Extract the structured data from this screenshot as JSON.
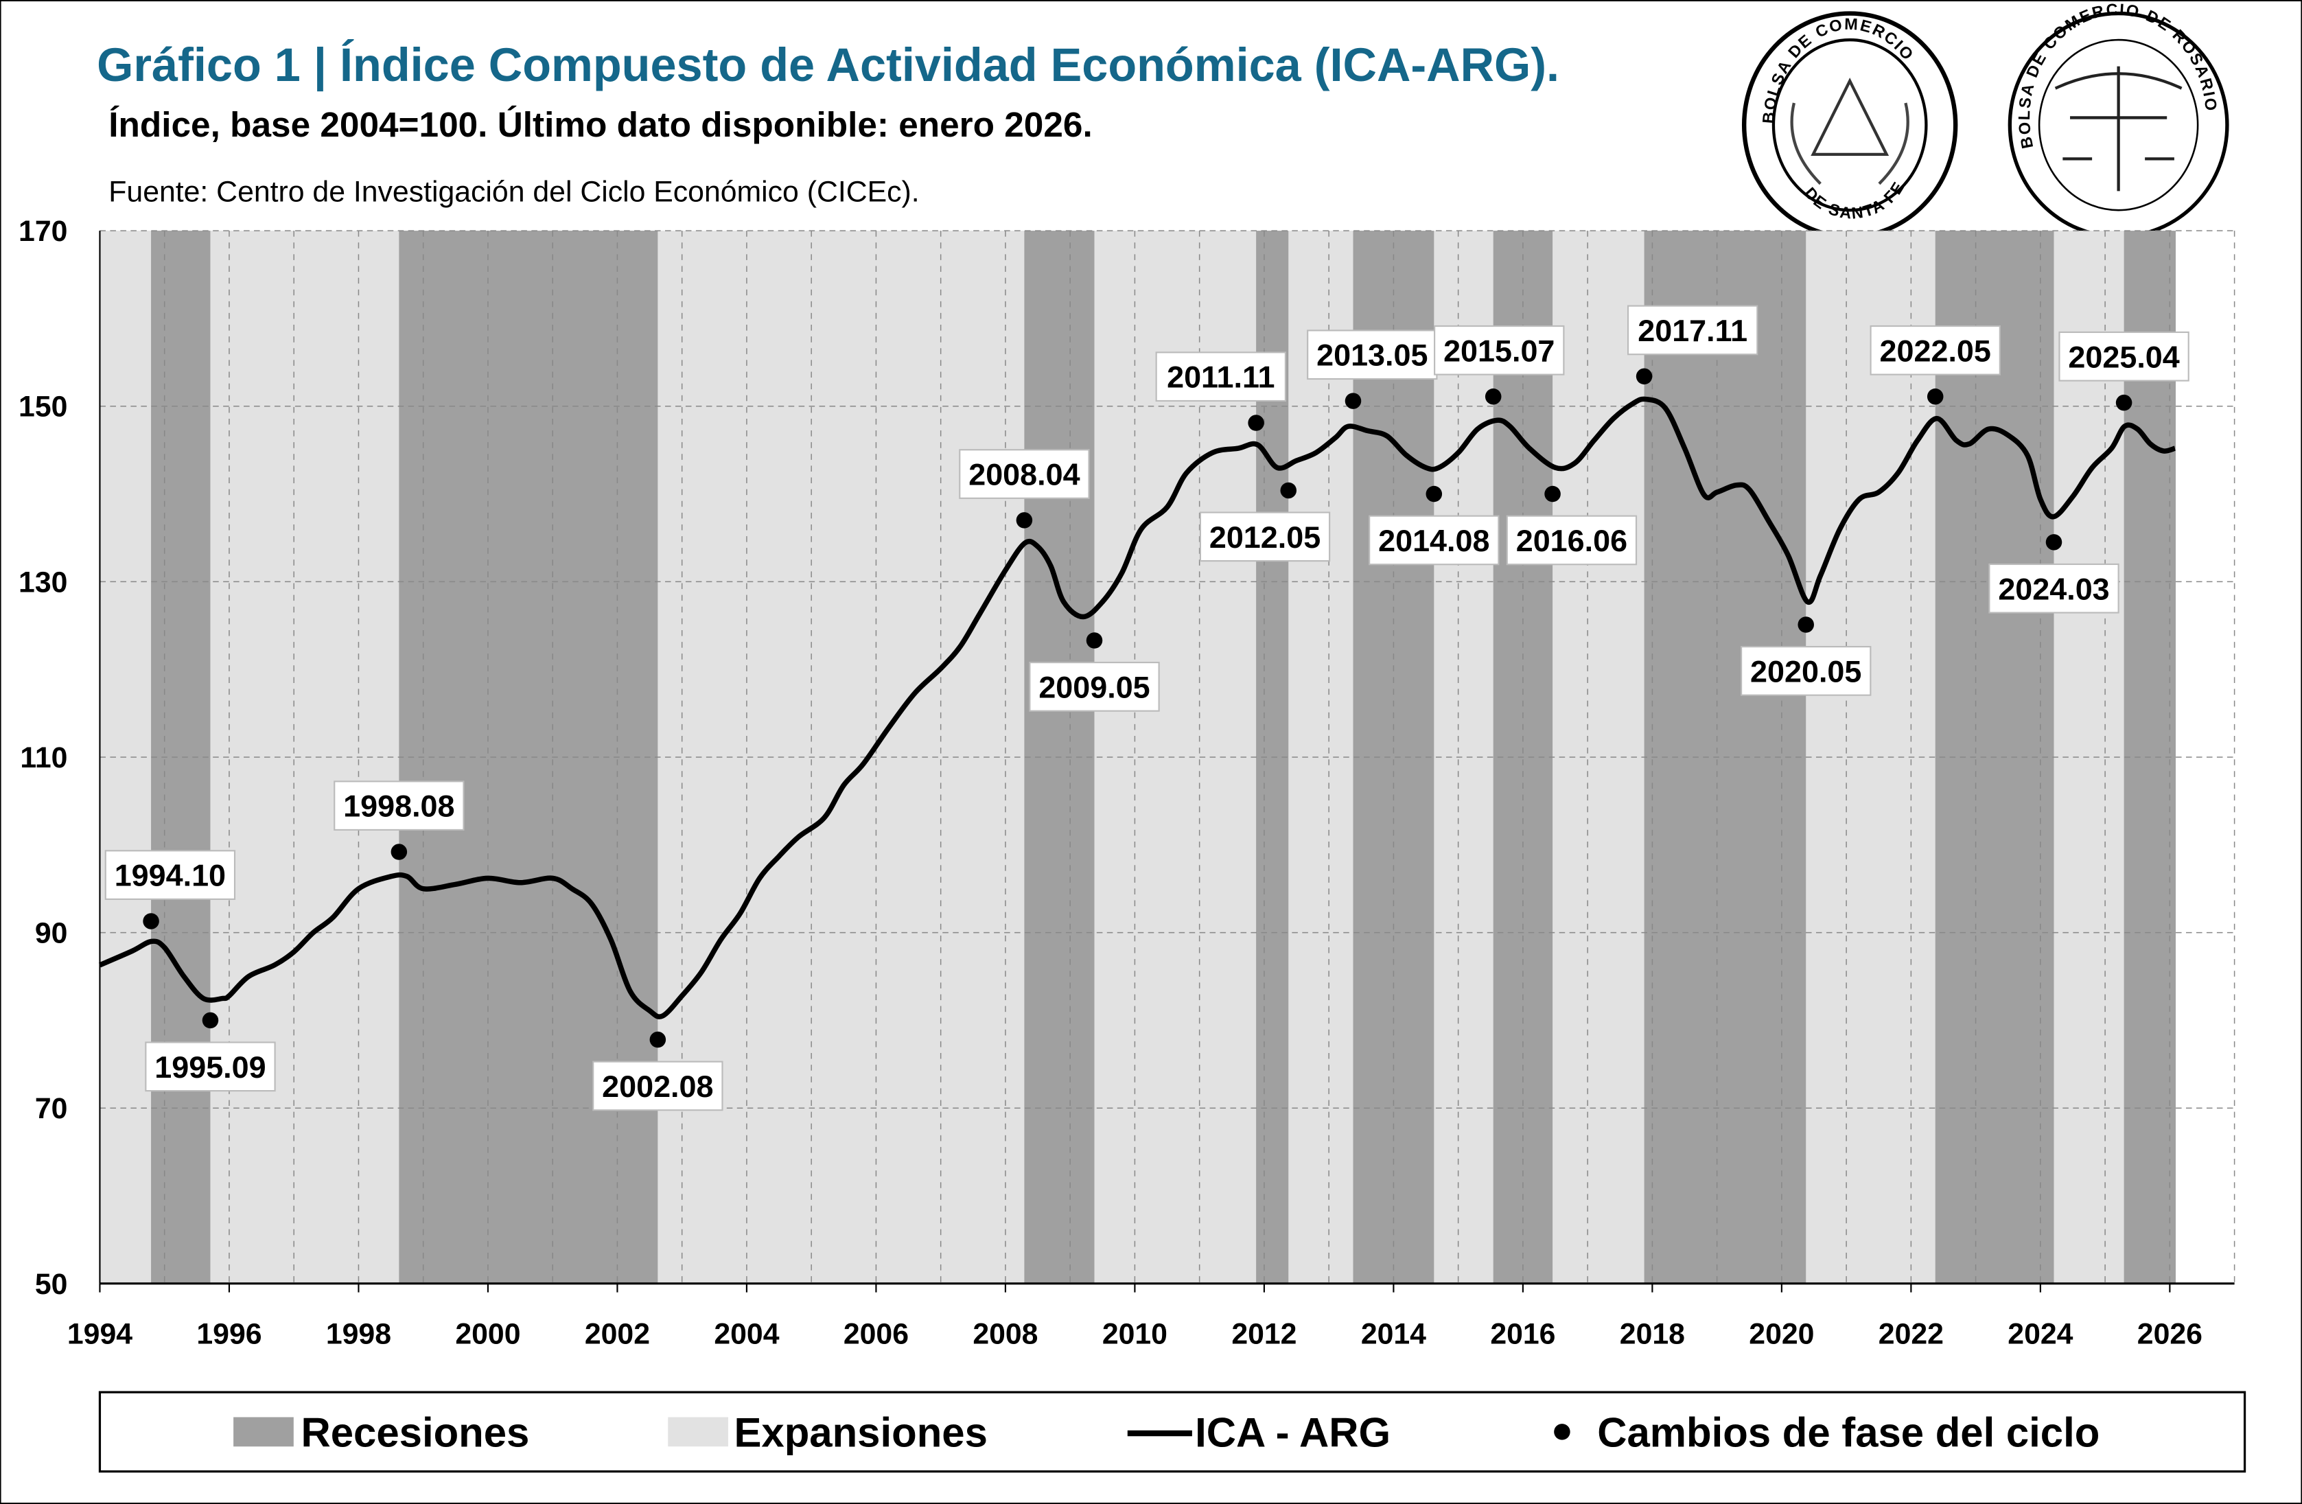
{
  "header": {
    "title": "Gráfico 1 | Índice Compuesto de Actividad Económica (ICA-ARG).",
    "subtitle": "Índice, base 2004=100. Último dato disponible: enero 2026.",
    "source": "Fuente: Centro de Investigación del Ciclo Económico (CICEc).",
    "title_color": "#15678a"
  },
  "logos": [
    {
      "name": "bolsa-de-comercio-santa-fe-seal",
      "top_text": "BOLSA DE COMERCIO",
      "bottom_text": "DE SANTA FE"
    },
    {
      "name": "bolsa-de-comercio-rosario-seal",
      "top_text": "BOLSA DE COMERCIO DE ROSARIO"
    }
  ],
  "legend": {
    "recessions": "Recesiones",
    "expansions": "Expansiones",
    "series": "ICA - ARG",
    "turning_points": "Cambios de fase del ciclo"
  },
  "chart_data": {
    "type": "line",
    "title": "",
    "xlabel": "",
    "ylabel": "",
    "xlim": [
      1994,
      2027
    ],
    "ylim": [
      50,
      170
    ],
    "x_ticks": [
      "1994",
      "1996",
      "1998",
      "2000",
      "2002",
      "2004",
      "2006",
      "2008",
      "2010",
      "2012",
      "2014",
      "2016",
      "2018",
      "2020",
      "2022",
      "2024",
      "2026"
    ],
    "y_ticks": [
      "50",
      "70",
      "90",
      "110",
      "130",
      "150",
      "170"
    ],
    "grid": "dashed, both axes",
    "legend_position": "bottom",
    "colors": {
      "recession": "#a0a0a0",
      "expansion": "#e2e2e2",
      "line": "#000000",
      "points": "#000000"
    },
    "series": [
      {
        "name": "ICA - ARG",
        "x": [
          1994.0,
          1994.5,
          1994.8,
          1995.0,
          1995.3,
          1995.6,
          1995.9,
          1996.0,
          1996.3,
          1996.7,
          1997.0,
          1997.3,
          1997.6,
          1998.0,
          1998.5,
          1998.75,
          1999.0,
          1999.5,
          2000.0,
          2000.5,
          2001.0,
          2001.3,
          2001.6,
          2001.9,
          2002.2,
          2002.5,
          2002.7,
          2003.0,
          2003.3,
          2003.6,
          2003.9,
          2004.2,
          2004.5,
          2004.8,
          2005.2,
          2005.5,
          2005.8,
          2006.2,
          2006.6,
          2007.0,
          2007.3,
          2007.6,
          2008.0,
          2008.3,
          2008.5,
          2008.7,
          2008.9,
          2009.2,
          2009.5,
          2009.8,
          2010.1,
          2010.5,
          2010.8,
          2011.2,
          2011.6,
          2011.9,
          2012.2,
          2012.5,
          2012.8,
          2013.1,
          2013.3,
          2013.6,
          2013.9,
          2014.2,
          2014.5,
          2014.7,
          2015.0,
          2015.3,
          2015.6,
          2015.8,
          2016.1,
          2016.5,
          2016.8,
          2017.1,
          2017.4,
          2017.7,
          2017.9,
          2018.2,
          2018.5,
          2018.8,
          2019.0,
          2019.3,
          2019.5,
          2019.8,
          2020.1,
          2020.4,
          2020.6,
          2020.9,
          2021.2,
          2021.5,
          2021.8,
          2022.1,
          2022.4,
          2022.7,
          2022.9,
          2023.2,
          2023.5,
          2023.8,
          2024.0,
          2024.2,
          2024.5,
          2024.8,
          2025.1,
          2025.3,
          2025.5,
          2025.7,
          2025.9,
          2026.08
        ],
        "values": [
          86.3,
          87.9,
          89.0,
          88.3,
          85.0,
          82.5,
          82.5,
          82.8,
          85.0,
          86.3,
          87.8,
          90.0,
          91.7,
          95.0,
          96.4,
          96.4,
          95.0,
          95.5,
          96.2,
          95.7,
          96.2,
          95.0,
          93.3,
          89.2,
          83.3,
          81.1,
          80.5,
          82.8,
          85.5,
          89.2,
          92.2,
          96.2,
          98.7,
          100.9,
          103.1,
          106.8,
          109.2,
          113.4,
          117.3,
          120.1,
          122.6,
          126.3,
          131.3,
          134.4,
          134.0,
          131.8,
          127.7,
          126.0,
          127.7,
          131.0,
          136.0,
          138.5,
          142.4,
          144.7,
          145.2,
          145.6,
          143.0,
          143.8,
          144.7,
          146.4,
          147.7,
          147.2,
          146.6,
          144.4,
          143.0,
          143.0,
          144.7,
          147.4,
          148.4,
          147.7,
          145.2,
          143.0,
          143.5,
          146.1,
          148.6,
          150.3,
          150.8,
          149.8,
          145.2,
          139.9,
          140.2,
          141.0,
          140.5,
          136.9,
          133.0,
          127.7,
          130.7,
          136.0,
          139.4,
          140.2,
          142.4,
          146.1,
          148.6,
          146.1,
          145.7,
          147.4,
          146.7,
          144.4,
          139.4,
          137.4,
          139.7,
          143.0,
          145.2,
          147.7,
          147.4,
          145.7,
          144.9,
          145.2
        ]
      }
    ],
    "turning_points": [
      {
        "label": "1994.10",
        "type": "peak",
        "value": 91.3
      },
      {
        "label": "1995.09",
        "type": "trough",
        "value": 80.0
      },
      {
        "label": "1998.08",
        "type": "peak",
        "value": 99.2
      },
      {
        "label": "2002.08",
        "type": "trough",
        "value": 77.8
      },
      {
        "label": "2008.04",
        "type": "peak",
        "value": 137.0
      },
      {
        "label": "2009.05",
        "type": "trough",
        "value": 123.3
      },
      {
        "label": "2011.11",
        "type": "peak",
        "value": 148.1
      },
      {
        "label": "2012.05",
        "type": "trough",
        "value": 140.4
      },
      {
        "label": "2013.05",
        "type": "peak",
        "value": 150.6
      },
      {
        "label": "2014.08",
        "type": "trough",
        "value": 140.0
      },
      {
        "label": "2015.07",
        "type": "peak",
        "value": 151.1
      },
      {
        "label": "2016.06",
        "type": "trough",
        "value": 140.0
      },
      {
        "label": "2017.11",
        "type": "peak",
        "value": 153.4
      },
      {
        "label": "2020.05",
        "type": "trough",
        "value": 125.1
      },
      {
        "label": "2022.05",
        "type": "peak",
        "value": 151.1
      },
      {
        "label": "2024.03",
        "type": "trough",
        "value": 134.5
      },
      {
        "label": "2025.04",
        "type": "peak",
        "value": 150.4
      }
    ],
    "last_data": "2026.01"
  }
}
